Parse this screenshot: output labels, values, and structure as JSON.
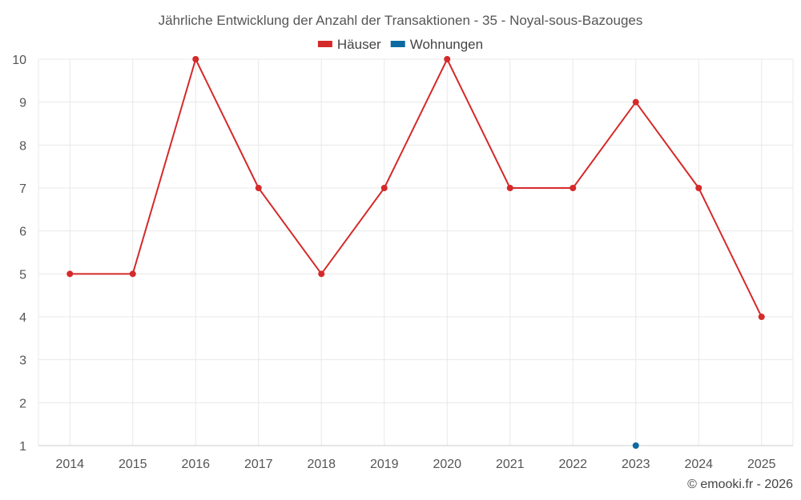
{
  "chart_data": {
    "type": "line",
    "title": "Jährliche Entwicklung der Anzahl der Transaktionen - 35 - Noyal-sous-Bazouges",
    "x": [
      "2014",
      "2015",
      "2016",
      "2017",
      "2018",
      "2019",
      "2020",
      "2021",
      "2022",
      "2023",
      "2024",
      "2025"
    ],
    "ylim": [
      1,
      10
    ],
    "yticks": [
      "1",
      "2",
      "3",
      "4",
      "5",
      "6",
      "7",
      "8",
      "9",
      "10"
    ],
    "grid": true,
    "legend_position": "top-center",
    "series": [
      {
        "name": "Häuser",
        "color": "#d42a2a",
        "values": [
          5,
          5,
          10,
          7,
          5,
          7,
          10,
          7,
          7,
          9,
          7,
          4
        ]
      },
      {
        "name": "Wohnungen",
        "color": "#0a6aa1",
        "values": [
          null,
          null,
          null,
          null,
          null,
          null,
          null,
          null,
          null,
          1,
          null,
          null
        ]
      }
    ],
    "credit": "© emooki.fr - 2026"
  }
}
